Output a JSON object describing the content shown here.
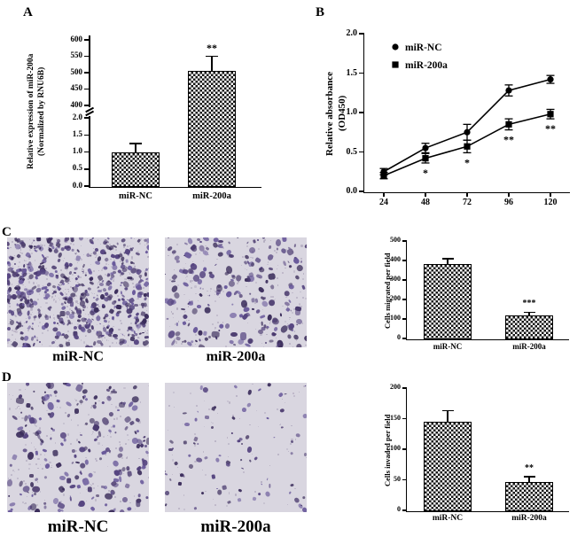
{
  "figure": {
    "panel_a_label": "A",
    "panel_b_label": "B",
    "panel_c_label": "C",
    "panel_d_label": "D"
  },
  "chart_data": [
    {
      "panel": "A",
      "type": "bar",
      "ylabel": "Relative expression of miR-200a",
      "ylabel2": "(Normalized by RNU6B)",
      "categories": [
        "miR-NC",
        "miR-200a"
      ],
      "values": [
        1.0,
        505
      ],
      "errors": [
        0.25,
        45
      ],
      "significance": [
        "",
        "**"
      ],
      "axis_break": true,
      "lower_range": [
        0,
        2
      ],
      "upper_range": [
        400,
        600
      ],
      "lower_ticks": [
        "0.0",
        "0.5",
        "1.0",
        "1.5",
        "2.0"
      ],
      "upper_ticks": [
        "400",
        "450",
        "500",
        "550",
        "600"
      ]
    },
    {
      "panel": "B",
      "type": "line",
      "ylabel": "Relative absorbance",
      "ylabel2": "(OD450)",
      "x": [
        24,
        48,
        72,
        96,
        120
      ],
      "ylim": [
        0,
        2
      ],
      "yticks": [
        "0.0",
        "0.5",
        "1.0",
        "1.5",
        "2.0"
      ],
      "legend_position": "top-left",
      "series": [
        {
          "name": "miR-NC",
          "marker": "circle",
          "values": [
            0.25,
            0.55,
            0.75,
            1.28,
            1.42
          ],
          "errors": [
            0.04,
            0.06,
            0.1,
            0.07,
            0.05
          ]
        },
        {
          "name": "miR-200a",
          "marker": "square",
          "values": [
            0.2,
            0.42,
            0.57,
            0.85,
            0.98
          ],
          "errors": [
            0.04,
            0.06,
            0.08,
            0.07,
            0.06
          ],
          "significance": [
            "",
            "*",
            "*",
            "**",
            "**"
          ]
        }
      ]
    },
    {
      "panel": "C",
      "type": "bar",
      "ylabel": "Cells migrated per field",
      "categories": [
        "miR-NC",
        "miR-200a"
      ],
      "values": [
        380,
        120
      ],
      "errors": [
        30,
        15
      ],
      "significance": [
        "",
        "***"
      ],
      "ylim": [
        0,
        500
      ],
      "yticks": [
        "0",
        "100",
        "200",
        "300",
        "400",
        "500"
      ]
    },
    {
      "panel": "D",
      "type": "bar",
      "ylabel": "Cells invaded per field",
      "categories": [
        "miR-NC",
        "miR-200a"
      ],
      "values": [
        145,
        47
      ],
      "errors": [
        18,
        8
      ],
      "significance": [
        "",
        "**"
      ],
      "ylim": [
        0,
        200
      ],
      "yticks": [
        "0",
        "50",
        "100",
        "150",
        "200"
      ]
    }
  ],
  "micrographs": {
    "c_left_label": "miR-NC",
    "c_right_label": "miR-200a",
    "d_left_label": "miR-NC",
    "d_right_label": "miR-200a",
    "c_left_density": "high",
    "c_right_density": "medium",
    "d_left_density": "medium",
    "d_right_density": "low"
  },
  "colors": {
    "stain": "#4a3a6e",
    "stain_dark": "#3a2c5a",
    "micrograph_bg": "#d9d6e0",
    "axis": "#000000"
  }
}
